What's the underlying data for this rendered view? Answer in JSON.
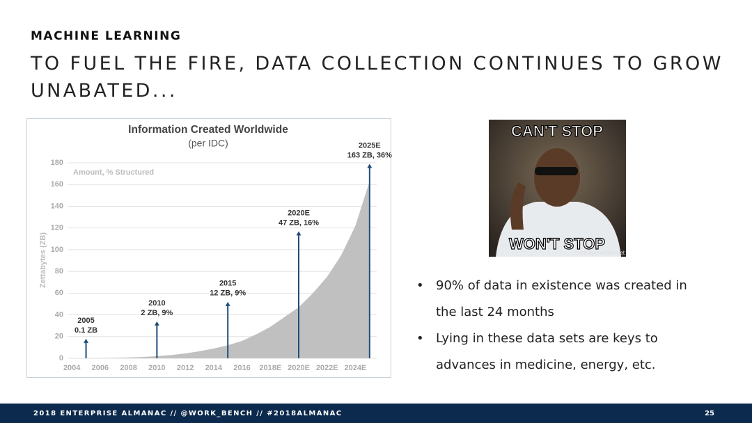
{
  "slide": {
    "kicker": "MACHINE LEARNING",
    "title_lines": [
      "TO FUEL THE FIRE, DATA COLLECTION CONTINUES TO GROW",
      "UNABATED..."
    ],
    "bullets": [
      "90% of data in existence was created in the last 24 months",
      "Lying in these data sets are keys to advances in medicine, energy, etc."
    ],
    "footer": "2018 ENTERPRISE ALMANAC // @WORK_BENCH // #2018ALMANAC",
    "page": "25"
  },
  "meme": {
    "top": "CAN'T STOP",
    "bottom": "WON'T STOP",
    "watermark": "memegenerator.net"
  },
  "chart_data": {
    "type": "area",
    "title": "Information Created Worldwide",
    "subtitle": "(per IDC)",
    "ylabel": "Zettabytes (ZB)",
    "note": "Amount, % Structured",
    "x": [
      2004,
      2005,
      2006,
      2007,
      2008,
      2009,
      2010,
      2011,
      2012,
      2013,
      2014,
      2015,
      2016,
      2017,
      2018,
      2019,
      2020,
      2021,
      2022,
      2023,
      2024,
      2025
    ],
    "values": [
      0,
      0.1,
      0.2,
      0.4,
      0.7,
      1.2,
      2,
      3,
      4.5,
      6.5,
      9,
      12,
      16,
      22,
      29,
      38,
      47,
      60,
      75,
      95,
      122,
      163
    ],
    "color": "#c0c0c0",
    "xlim": [
      2003.5,
      2025.5
    ],
    "xticks": [
      2004,
      2006,
      2008,
      2010,
      2012,
      2014,
      2016,
      {
        "value": 2018,
        "label": "2018E"
      },
      {
        "value": 2020,
        "label": "2020E"
      },
      {
        "value": 2022,
        "label": "2022E"
      },
      {
        "value": 2024,
        "label": "2024E"
      }
    ],
    "ylim": [
      0,
      180
    ],
    "yticks": [
      0,
      20,
      40,
      60,
      80,
      100,
      120,
      140,
      160,
      180
    ],
    "grid": true,
    "annotation_color": "#1f4e79",
    "annotations": [
      {
        "x": 2005,
        "y": 18,
        "label": [
          "2005",
          "0.1 ZB"
        ]
      },
      {
        "x": 2010,
        "y": 34,
        "label": [
          "2010",
          "2 ZB, 9%"
        ]
      },
      {
        "x": 2015,
        "y": 52,
        "label": [
          "2015",
          "12 ZB, 9%"
        ]
      },
      {
        "x": 2020,
        "y": 117,
        "label": [
          "2020E",
          "47 ZB, 16%"
        ]
      },
      {
        "x": 2025,
        "y": 179,
        "label": [
          "2025E",
          "163 ZB, 36%"
        ]
      }
    ]
  }
}
